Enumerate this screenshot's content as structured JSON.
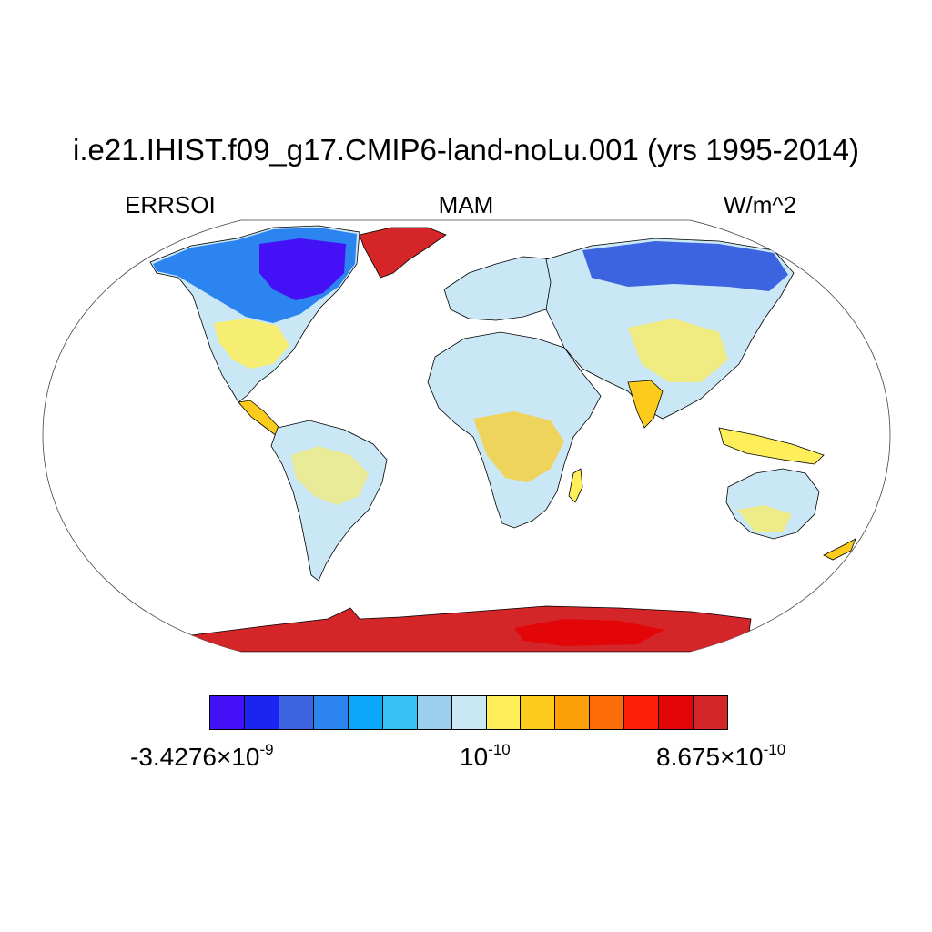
{
  "title": "i.e21.IHIST.f09_g17.CMIP6-land-noLu.001 (yrs 1995-2014)",
  "left_string": "ERRSOI",
  "center_string": "MAM",
  "right_string": "W/m^2",
  "colorbar": {
    "colors": [
      "#4410f5",
      "#1b24f0",
      "#3c64e0",
      "#2c84f0",
      "#0ca6fa",
      "#36c0f4",
      "#9ccfee",
      "#cae7f6",
      "#fdee5a",
      "#fdcb1c",
      "#fd9f08",
      "#fd6e08",
      "#fd1e08",
      "#e30608",
      "#d42628"
    ],
    "labels": [
      {
        "base": "-3.4276×10",
        "exp": "-9"
      },
      {
        "base": "10",
        "exp": "-10"
      },
      {
        "base": "8.675×10",
        "exp": "-10"
      }
    ]
  },
  "map_colors": {
    "ocean": "#ffffff",
    "land_base": "#cae7f6",
    "ice_sheet": "#d42628",
    "ice_core": "#e30608",
    "coastline": "#000000"
  }
}
